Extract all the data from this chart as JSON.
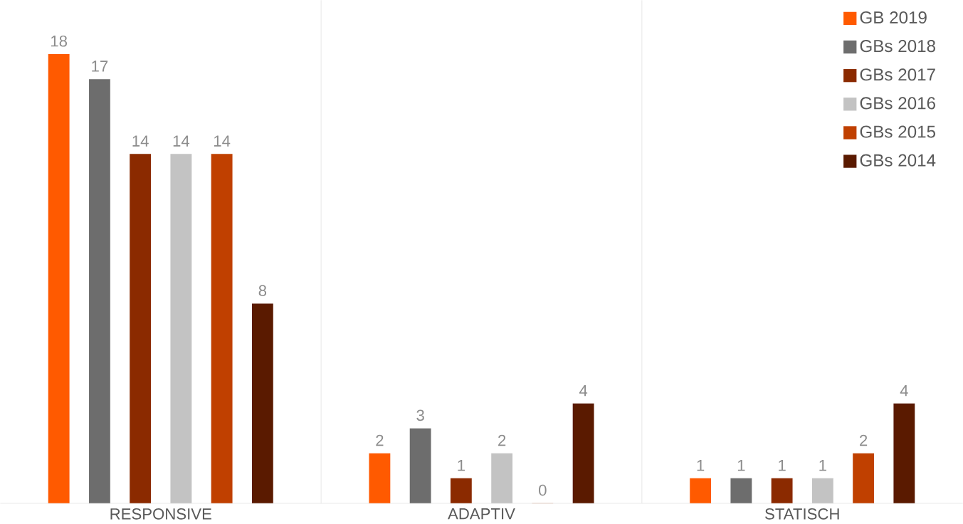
{
  "chart_data": {
    "type": "bar",
    "categories": [
      "RESPONSIVE",
      "ADAPTIV",
      "STATISCH"
    ],
    "series": [
      {
        "name": "GB 2019",
        "color": "#ff5a00",
        "values": [
          18,
          2,
          1
        ]
      },
      {
        "name": "GBs 2018",
        "color": "#6d6d6d",
        "values": [
          17,
          3,
          1
        ]
      },
      {
        "name": "GBs 2017",
        "color": "#8b2a00",
        "values": [
          14,
          1,
          1
        ]
      },
      {
        "name": "GBs 2016",
        "color": "#c3c3c3",
        "values": [
          14,
          2,
          1
        ]
      },
      {
        "name": "GBs 2015",
        "color": "#c04000",
        "values": [
          14,
          0,
          2
        ]
      },
      {
        "name": "GBs 2014",
        "color": "#5a1a00",
        "values": [
          8,
          4,
          4
        ]
      }
    ],
    "data_labels": true,
    "legend": "top right"
  }
}
